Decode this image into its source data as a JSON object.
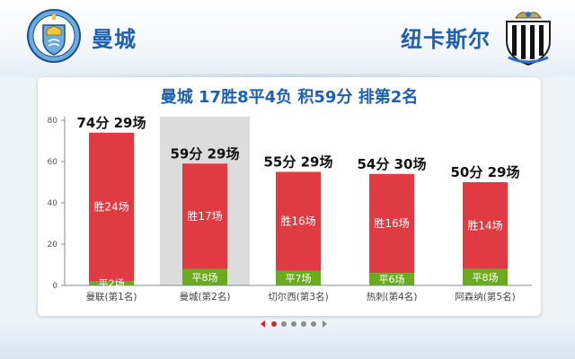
{
  "header": {
    "home_team": "曼城",
    "away_team": "纽卡斯尔",
    "brand_color": "#1d5fb0"
  },
  "colors": {
    "win": "#e03b42",
    "draw": "#6aac1e",
    "highlight": "#dcdcdc",
    "axis": "#8a8a8a"
  },
  "chart_data": {
    "type": "bar",
    "title": "曼城 17胜8平4负 积59分 排第2名",
    "xlabel": "",
    "ylabel": "",
    "ylim": [
      0,
      80
    ],
    "yticks": [
      0,
      20,
      40,
      60,
      80
    ],
    "grid": false,
    "categories": [
      "曼联(第1名)",
      "曼城(第2名)",
      "切尔西(第3名)",
      "热刺(第4名)",
      "阿森纳(第5名)"
    ],
    "values": [
      74,
      59,
      55,
      54,
      50
    ],
    "top_labels": [
      "74分 29场",
      "59分 29场",
      "55分 29场",
      "54分 30场",
      "50分 29场"
    ],
    "highlight_index": 1,
    "stacks": [
      {
        "name": "胜",
        "labels": [
          "胜24场",
          "胜17场",
          "胜16场",
          "胜16场",
          "胜14场"
        ]
      },
      {
        "name": "平",
        "labels": [
          "平2场",
          "平8场",
          "平7场",
          "平6场",
          "平8场"
        ],
        "values": [
          2,
          8,
          7,
          6,
          8
        ]
      }
    ]
  },
  "pager": {
    "total": 5,
    "active": 0
  }
}
